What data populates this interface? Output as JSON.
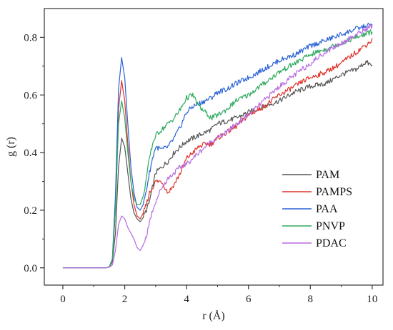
{
  "chart_data": {
    "type": "line",
    "title": "",
    "xlabel": "r (Å)",
    "ylabel": "g (r)",
    "xlim": [
      -0.6,
      10.35
    ],
    "ylim": [
      -0.06,
      0.9
    ],
    "xticks": [
      0,
      2,
      4,
      6,
      8,
      10
    ],
    "yticks": [
      0.0,
      0.2,
      0.4,
      0.6,
      0.8
    ],
    "xtick_labels": [
      "0",
      "2",
      "4",
      "6",
      "8",
      "10"
    ],
    "ytick_labels": [
      "0.0",
      "0.2",
      "0.4",
      "0.6",
      "0.8"
    ],
    "grid": false,
    "legend_position": "bottom-right",
    "series": [
      {
        "name": "PAM",
        "color": "#555555",
        "x": [
          0,
          1.4,
          1.5,
          1.6,
          1.7,
          1.8,
          1.9,
          2.0,
          2.1,
          2.2,
          2.3,
          2.4,
          2.5,
          2.6,
          2.7,
          2.8,
          2.9,
          3.0,
          3.2,
          3.4,
          3.6,
          3.8,
          4.0,
          4.2,
          4.4,
          4.6,
          4.8,
          5.0,
          5.3,
          5.6,
          6.0,
          6.5,
          7.0,
          7.5,
          8.0,
          8.5,
          9.0,
          9.5,
          9.8,
          10.0
        ],
        "y": [
          0,
          0,
          0.003,
          0.02,
          0.12,
          0.35,
          0.45,
          0.42,
          0.33,
          0.24,
          0.19,
          0.17,
          0.16,
          0.175,
          0.2,
          0.23,
          0.28,
          0.33,
          0.35,
          0.37,
          0.4,
          0.42,
          0.44,
          0.45,
          0.46,
          0.47,
          0.48,
          0.5,
          0.51,
          0.52,
          0.54,
          0.56,
          0.58,
          0.61,
          0.63,
          0.64,
          0.67,
          0.69,
          0.715,
          0.7
        ]
      },
      {
        "name": "PAMPS",
        "color": "#e0302a",
        "x": [
          0,
          1.4,
          1.5,
          1.6,
          1.7,
          1.8,
          1.9,
          2.0,
          2.1,
          2.2,
          2.3,
          2.4,
          2.5,
          2.6,
          2.7,
          2.8,
          2.9,
          3.0,
          3.2,
          3.4,
          3.6,
          3.8,
          4.0,
          4.2,
          4.4,
          4.6,
          4.8,
          5.0,
          5.3,
          5.6,
          6.0,
          6.5,
          7.0,
          7.5,
          7.8,
          8.0,
          8.5,
          9.0,
          9.5,
          10.0
        ],
        "y": [
          0,
          0,
          0.003,
          0.03,
          0.2,
          0.55,
          0.65,
          0.58,
          0.43,
          0.3,
          0.22,
          0.18,
          0.17,
          0.19,
          0.22,
          0.26,
          0.28,
          0.3,
          0.3,
          0.26,
          0.29,
          0.33,
          0.38,
          0.4,
          0.42,
          0.43,
          0.43,
          0.45,
          0.47,
          0.49,
          0.53,
          0.56,
          0.6,
          0.63,
          0.65,
          0.66,
          0.68,
          0.71,
          0.75,
          0.79
        ]
      },
      {
        "name": "PAA",
        "color": "#2a62d6",
        "x": [
          0,
          1.4,
          1.5,
          1.6,
          1.7,
          1.8,
          1.9,
          2.0,
          2.1,
          2.2,
          2.3,
          2.4,
          2.5,
          2.6,
          2.7,
          2.8,
          2.9,
          3.0,
          3.2,
          3.4,
          3.6,
          3.8,
          4.0,
          4.2,
          4.4,
          4.6,
          4.8,
          5.0,
          5.3,
          5.6,
          6.0,
          6.5,
          7.0,
          7.5,
          8.0,
          8.5,
          9.0,
          9.5,
          10.0
        ],
        "y": [
          0,
          0,
          0.003,
          0.03,
          0.25,
          0.62,
          0.73,
          0.66,
          0.5,
          0.35,
          0.26,
          0.21,
          0.2,
          0.22,
          0.27,
          0.33,
          0.38,
          0.42,
          0.41,
          0.42,
          0.45,
          0.49,
          0.54,
          0.56,
          0.57,
          0.58,
          0.59,
          0.61,
          0.62,
          0.64,
          0.66,
          0.69,
          0.72,
          0.74,
          0.77,
          0.79,
          0.81,
          0.83,
          0.845
        ]
      },
      {
        "name": "PNVP",
        "color": "#2eaa5e",
        "x": [
          0,
          1.4,
          1.5,
          1.6,
          1.7,
          1.8,
          1.9,
          2.0,
          2.1,
          2.2,
          2.3,
          2.4,
          2.5,
          2.6,
          2.7,
          2.8,
          2.9,
          3.0,
          3.2,
          3.4,
          3.6,
          3.8,
          4.0,
          4.2,
          4.4,
          4.6,
          4.8,
          5.0,
          5.3,
          5.6,
          6.0,
          6.5,
          7.0,
          7.5,
          8.0,
          8.5,
          9.0,
          9.5,
          10.0
        ],
        "y": [
          0,
          0,
          0.003,
          0.03,
          0.2,
          0.5,
          0.58,
          0.52,
          0.4,
          0.3,
          0.24,
          0.22,
          0.22,
          0.25,
          0.31,
          0.38,
          0.43,
          0.46,
          0.48,
          0.5,
          0.52,
          0.55,
          0.59,
          0.6,
          0.56,
          0.54,
          0.52,
          0.53,
          0.55,
          0.58,
          0.6,
          0.64,
          0.68,
          0.71,
          0.74,
          0.76,
          0.78,
          0.8,
          0.82
        ]
      },
      {
        "name": "PDAC",
        "color": "#b56ae0",
        "x": [
          0,
          1.4,
          1.5,
          1.6,
          1.7,
          1.8,
          1.9,
          2.0,
          2.1,
          2.2,
          2.3,
          2.4,
          2.5,
          2.6,
          2.7,
          2.8,
          2.9,
          3.0,
          3.2,
          3.4,
          3.6,
          3.8,
          4.0,
          4.2,
          4.4,
          4.6,
          4.8,
          5.0,
          5.3,
          5.6,
          6.0,
          6.5,
          7.0,
          7.5,
          8.0,
          8.5,
          9.0,
          9.5,
          10.0
        ],
        "y": [
          0,
          0,
          0.002,
          0.01,
          0.06,
          0.15,
          0.18,
          0.17,
          0.14,
          0.12,
          0.1,
          0.07,
          0.06,
          0.08,
          0.11,
          0.16,
          0.2,
          0.23,
          0.28,
          0.31,
          0.33,
          0.35,
          0.36,
          0.38,
          0.4,
          0.42,
          0.44,
          0.45,
          0.47,
          0.5,
          0.53,
          0.58,
          0.63,
          0.67,
          0.71,
          0.75,
          0.78,
          0.81,
          0.84
        ]
      }
    ]
  }
}
